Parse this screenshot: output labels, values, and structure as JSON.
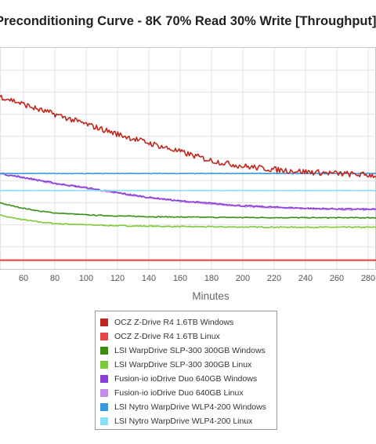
{
  "chart_data": {
    "type": "line",
    "title": "Preconditioning Curve - 8K 70% Read 30% Write [Throughput]",
    "xlabel": "Minutes",
    "ylabel": "",
    "xlim": [
      45,
      285
    ],
    "ylim": [
      0,
      100
    ],
    "x_ticks": [
      60,
      80,
      100,
      120,
      140,
      160,
      180,
      200,
      220,
      240,
      260,
      280
    ],
    "grid": true,
    "legend_position": "bottom",
    "series": [
      {
        "name": "OCZ Z-Drive R4 1.6TB Windows",
        "color": "#c0281f",
        "noise": 1.3,
        "x": [
          45,
          50,
          60,
          70,
          80,
          100,
          120,
          140,
          160,
          180,
          200,
          220,
          240,
          260,
          280,
          285
        ],
        "y": [
          78,
          77,
          74.5,
          72,
          70,
          65.5,
          61,
          57,
          53,
          49,
          46.5,
          45,
          44,
          43.2,
          42.5,
          42.3
        ]
      },
      {
        "name": "OCZ Z-Drive R4 1.6TB Linux",
        "color": "#e8474a",
        "noise": 0,
        "x": [
          45,
          285
        ],
        "y": [
          4,
          4
        ]
      },
      {
        "name": "LSI WarpDrive SLP-300 300GB Windows",
        "color": "#3a8f12",
        "noise": 0.2,
        "x": [
          45,
          50,
          60,
          70,
          80,
          100,
          120,
          140,
          160,
          200,
          240,
          285
        ],
        "y": [
          30,
          29,
          27.5,
          26.2,
          25.4,
          24.5,
          24,
          23.7,
          23.5,
          23.3,
          23.2,
          23.2
        ]
      },
      {
        "name": "LSI WarpDrive SLP-300 300GB Linux",
        "color": "#7ccc3a",
        "noise": 0.25,
        "x": [
          45,
          50,
          60,
          70,
          80,
          100,
          120,
          140,
          160,
          200,
          240,
          285
        ],
        "y": [
          24.5,
          23.5,
          22.3,
          21.3,
          20.6,
          20,
          19.6,
          19.4,
          19.2,
          19,
          18.9,
          18.9
        ]
      },
      {
        "name": "Fusion-io ioDrive Duo 640GB Windows",
        "color": "#8b3fd9",
        "noise": 0.35,
        "x": [
          45,
          50,
          60,
          80,
          100,
          120,
          140,
          160,
          180,
          200,
          220,
          240,
          260,
          285
        ],
        "y": [
          43.5,
          42.5,
          41.5,
          38.8,
          36.8,
          34.5,
          32.4,
          30.8,
          29.7,
          28.6,
          28,
          27.5,
          27.2,
          27
        ]
      },
      {
        "name": "Fusion-io ioDrive Duo 640GB Linux",
        "color": "#c48de8",
        "noise": 0.3,
        "x": [
          45,
          50,
          60,
          80,
          100,
          120,
          140,
          160,
          180,
          200,
          220,
          240,
          260,
          285
        ],
        "y": [
          43.5,
          42.3,
          41.3,
          38.6,
          36.6,
          34.3,
          32.2,
          30.6,
          29.5,
          28.4,
          27.8,
          27.3,
          27,
          26.8
        ]
      },
      {
        "name": "LSI Nytro WarpDrive WLP4-200 Windows",
        "color": "#3399e0",
        "noise": 0.12,
        "x": [
          45,
          285
        ],
        "y": [
          43.2,
          43.2
        ]
      },
      {
        "name": "LSI Nytro WarpDrive WLP4-200 Linux",
        "color": "#88e0f8",
        "noise": 0.1,
        "x": [
          45,
          285
        ],
        "y": [
          35.5,
          35.5
        ]
      }
    ]
  }
}
